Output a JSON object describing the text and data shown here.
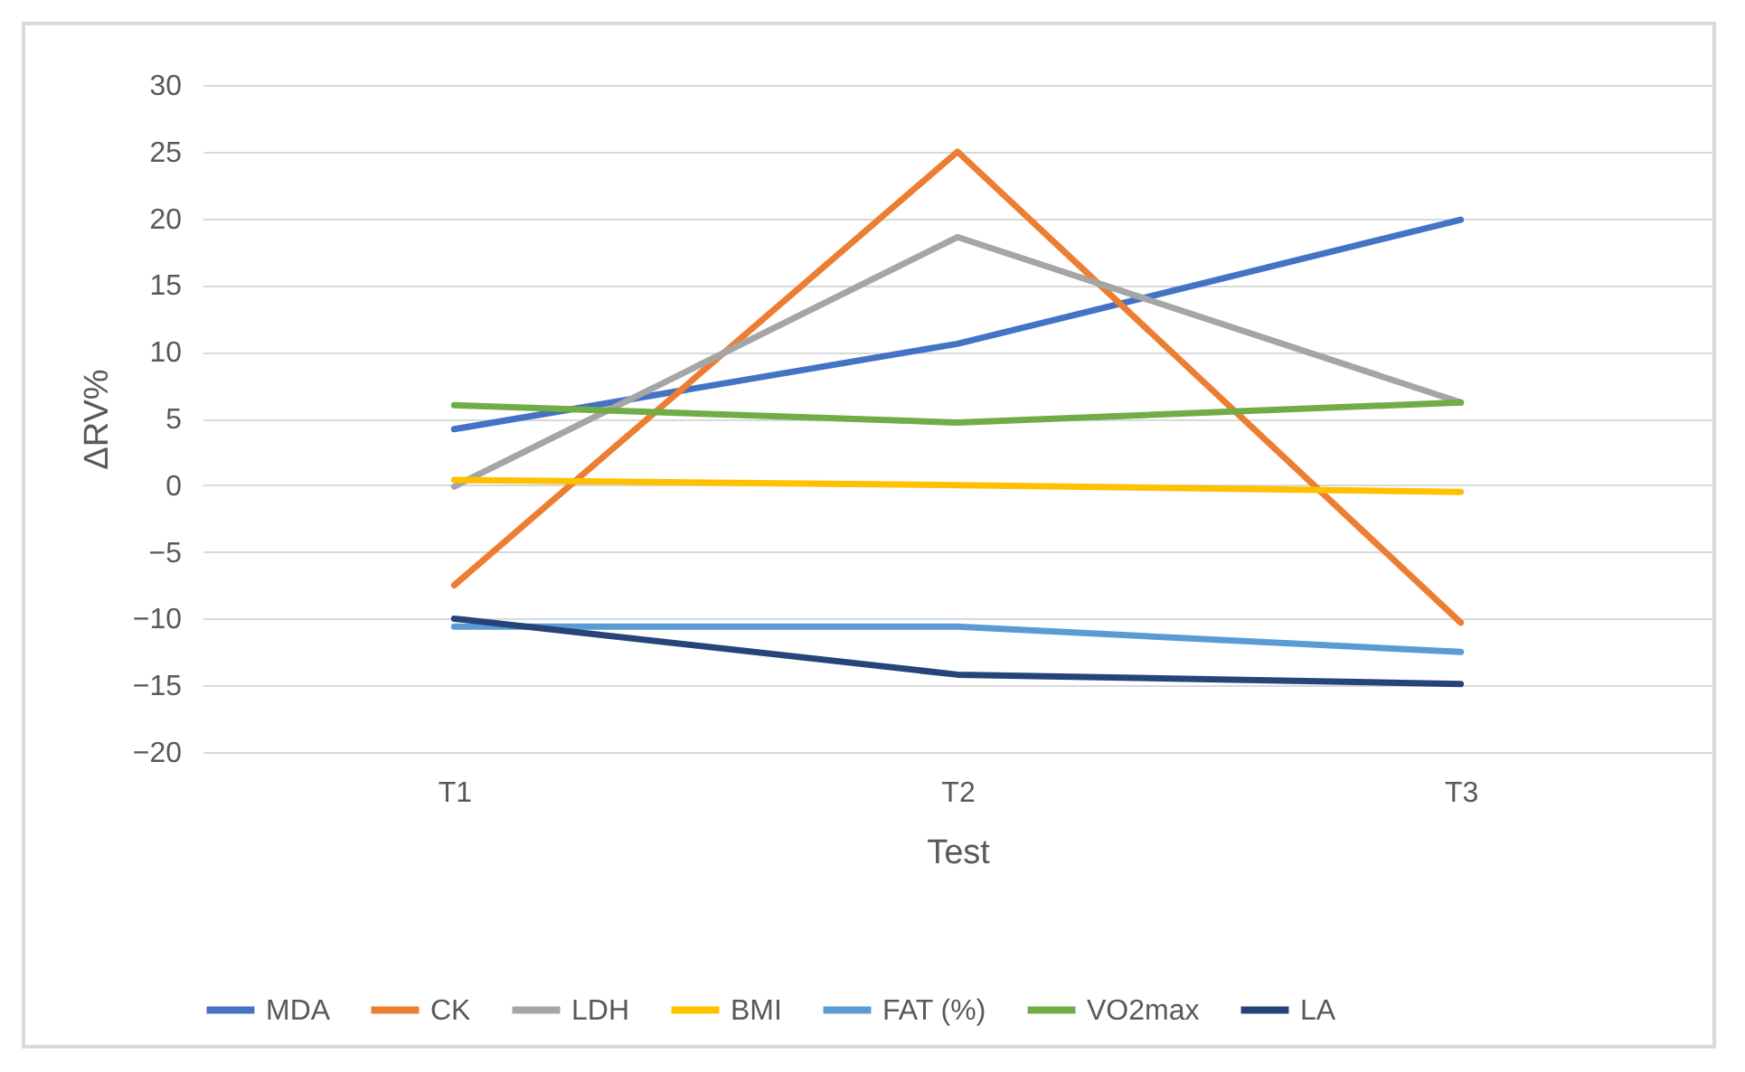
{
  "chart_data": {
    "type": "line",
    "xlabel": "Test",
    "ylabel": "ΔRV%",
    "categories": [
      "T1",
      "T2",
      "T3"
    ],
    "series": [
      {
        "name": "MDA",
        "color": "#4472c4",
        "values": [
          4.2,
          10.6,
          19.9
        ]
      },
      {
        "name": "CK",
        "color": "#ed7d31",
        "values": [
          -7.5,
          25,
          -10.3
        ]
      },
      {
        "name": "LDH",
        "color": "#a5a5a5",
        "values": [
          -0.1,
          18.6,
          6.2
        ]
      },
      {
        "name": "BMI",
        "color": "#ffc000",
        "values": [
          0.4,
          0,
          -0.5
        ]
      },
      {
        "name": "FAT (%)",
        "color": "#5b9bd5",
        "values": [
          -10.6,
          -10.6,
          -12.5
        ]
      },
      {
        "name": "VO2max",
        "color": "#70ad47",
        "values": [
          6,
          4.7,
          6.2
        ]
      },
      {
        "name": "LA",
        "color": "#264478",
        "values": [
          -10,
          -14.2,
          -14.9
        ]
      }
    ],
    "ylim": [
      -20,
      30
    ],
    "yticks": [
      -20,
      -15,
      -10,
      -5,
      0,
      5,
      10,
      15,
      20,
      25,
      30
    ],
    "grid": "y",
    "legend": "bottom",
    "marker": "none",
    "line_style": "solid"
  }
}
